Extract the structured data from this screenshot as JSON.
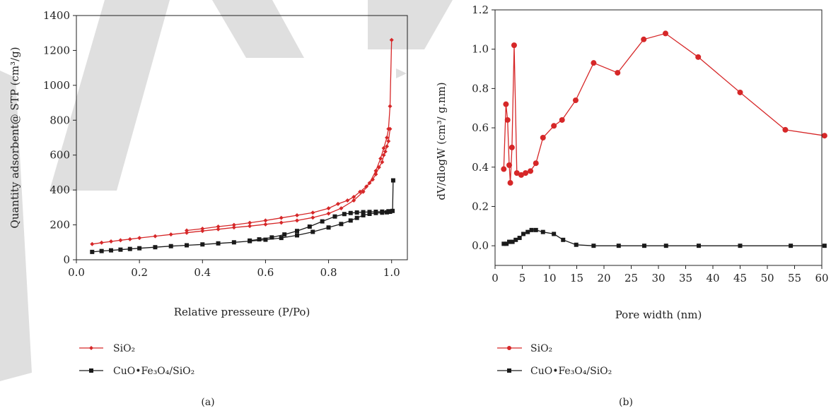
{
  "chart_data": [
    {
      "type": "line",
      "panel_label": "(a)",
      "xlabel": "Relative presseure (P/Po)",
      "ylabel": "Quantity adsorbent@ STP (cm³/g)",
      "xlim": [
        0.0,
        1.05
      ],
      "ylim": [
        0,
        1400
      ],
      "xticks": [
        "0.0",
        "0.2",
        "0.4",
        "0.6",
        "0.8",
        "1.0"
      ],
      "xtick_values": [
        0.0,
        0.2,
        0.4,
        0.6,
        0.8,
        1.0
      ],
      "yticks": [
        "0",
        "200",
        "400",
        "600",
        "800",
        "1000",
        "1200",
        "1400"
      ],
      "ytick_values": [
        0,
        200,
        400,
        600,
        800,
        1000,
        1200,
        1400
      ],
      "grid": false,
      "legend_position": "below",
      "series": [
        {
          "name": "SiO₂",
          "branch": "adsorption",
          "color": "#d62728",
          "marker": "diamond",
          "x": [
            0.05,
            0.08,
            0.11,
            0.14,
            0.17,
            0.2,
            0.25,
            0.3,
            0.35,
            0.4,
            0.45,
            0.5,
            0.55,
            0.6,
            0.65,
            0.7,
            0.75,
            0.8,
            0.84,
            0.88,
            0.91,
            0.93,
            0.95,
            0.965,
            0.975,
            0.985,
            0.99,
            0.995,
            1.0
          ],
          "y": [
            90,
            98,
            105,
            112,
            118,
            125,
            135,
            145,
            155,
            165,
            175,
            185,
            193,
            203,
            213,
            225,
            242,
            265,
            295,
            340,
            390,
            440,
            510,
            580,
            640,
            700,
            750,
            880,
            1260
          ]
        },
        {
          "name": "SiO₂",
          "branch": "desorption",
          "color": "#d62728",
          "marker": "diamond",
          "x": [
            0.995,
            0.99,
            0.985,
            0.98,
            0.975,
            0.97,
            0.96,
            0.95,
            0.94,
            0.92,
            0.9,
            0.88,
            0.86,
            0.83,
            0.8,
            0.75,
            0.7,
            0.65,
            0.6,
            0.55,
            0.5,
            0.45,
            0.4,
            0.35
          ],
          "y": [
            750,
            680,
            650,
            620,
            600,
            560,
            530,
            490,
            460,
            420,
            390,
            360,
            340,
            320,
            295,
            270,
            255,
            240,
            225,
            212,
            200,
            190,
            178,
            168
          ]
        },
        {
          "name": "CuO•Fe₃O₄/SiO₂",
          "branch": "adsorption",
          "color": "#1a1a1a",
          "marker": "square",
          "x": [
            0.05,
            0.08,
            0.11,
            0.14,
            0.17,
            0.2,
            0.25,
            0.3,
            0.35,
            0.4,
            0.45,
            0.5,
            0.55,
            0.6,
            0.65,
            0.7,
            0.75,
            0.8,
            0.84,
            0.87,
            0.89,
            0.91,
            0.93,
            0.95,
            0.97,
            0.985,
            0.995,
            1.003,
            1.005
          ],
          "y": [
            45,
            50,
            54,
            58,
            62,
            66,
            72,
            78,
            83,
            88,
            94,
            100,
            107,
            115,
            125,
            140,
            160,
            185,
            205,
            225,
            240,
            255,
            263,
            268,
            270,
            272,
            275,
            280,
            455
          ]
        },
        {
          "name": "CuO•Fe₃O₄/SiO₂",
          "branch": "desorption",
          "color": "#1a1a1a",
          "marker": "square",
          "x": [
            0.99,
            0.97,
            0.95,
            0.93,
            0.91,
            0.89,
            0.87,
            0.85,
            0.82,
            0.78,
            0.74,
            0.7,
            0.66,
            0.62,
            0.58,
            0.55
          ],
          "y": [
            278,
            276,
            275,
            274,
            273,
            271,
            268,
            262,
            248,
            220,
            190,
            165,
            145,
            128,
            117,
            110
          ]
        }
      ]
    },
    {
      "type": "line",
      "panel_label": "(b)",
      "xlabel": "Pore width (nm)",
      "ylabel": "dV/dlogW (cm³/ g.nm)",
      "xlim": [
        0,
        60
      ],
      "ylim": [
        -0.1,
        1.2
      ],
      "xticks": [
        "0",
        "5",
        "10",
        "15",
        "20",
        "25",
        "30",
        "35",
        "40",
        "45",
        "50",
        "55",
        "60"
      ],
      "xtick_values": [
        0,
        5,
        10,
        15,
        20,
        25,
        30,
        35,
        40,
        45,
        50,
        55,
        60
      ],
      "yticks": [
        "0.0",
        "0.2",
        "0.4",
        "0.6",
        "0.8",
        "1.0",
        "1.2"
      ],
      "ytick_values": [
        0,
        0.2,
        0.4,
        0.6,
        0.8,
        1.0,
        1.2
      ],
      "grid": false,
      "legend_position": "below",
      "series": [
        {
          "name": "SiO₂",
          "color": "#d62728",
          "marker": "circle",
          "x": [
            1.6,
            2.0,
            2.3,
            2.6,
            2.8,
            3.1,
            3.5,
            4.0,
            4.8,
            5.6,
            6.5,
            7.5,
            8.8,
            10.8,
            12.3,
            14.8,
            18.1,
            22.5,
            27.3,
            31.3,
            37.3,
            45.0,
            53.3,
            60.5
          ],
          "y": [
            0.39,
            0.72,
            0.64,
            0.41,
            0.32,
            0.5,
            1.02,
            0.37,
            0.36,
            0.37,
            0.38,
            0.42,
            0.55,
            0.61,
            0.64,
            0.74,
            0.93,
            0.88,
            1.05,
            1.08,
            0.96,
            0.78,
            0.59,
            0.56
          ]
        },
        {
          "name": "CuO•Fe₃O₄/SiO₂",
          "color": "#1a1a1a",
          "marker": "square",
          "x": [
            1.6,
            2.1,
            2.6,
            3.2,
            3.8,
            4.5,
            5.2,
            6.0,
            6.7,
            7.5,
            8.8,
            10.8,
            12.5,
            14.9,
            18.1,
            22.7,
            27.4,
            31.4,
            37.4,
            45.0,
            54.3,
            60.5
          ],
          "y": [
            0.01,
            0.01,
            0.02,
            0.02,
            0.03,
            0.04,
            0.06,
            0.07,
            0.08,
            0.08,
            0.07,
            0.06,
            0.03,
            0.005,
            0.0,
            0.0,
            0.0,
            0.0,
            0.0,
            0.0,
            0.0,
            0.0
          ]
        }
      ]
    }
  ]
}
